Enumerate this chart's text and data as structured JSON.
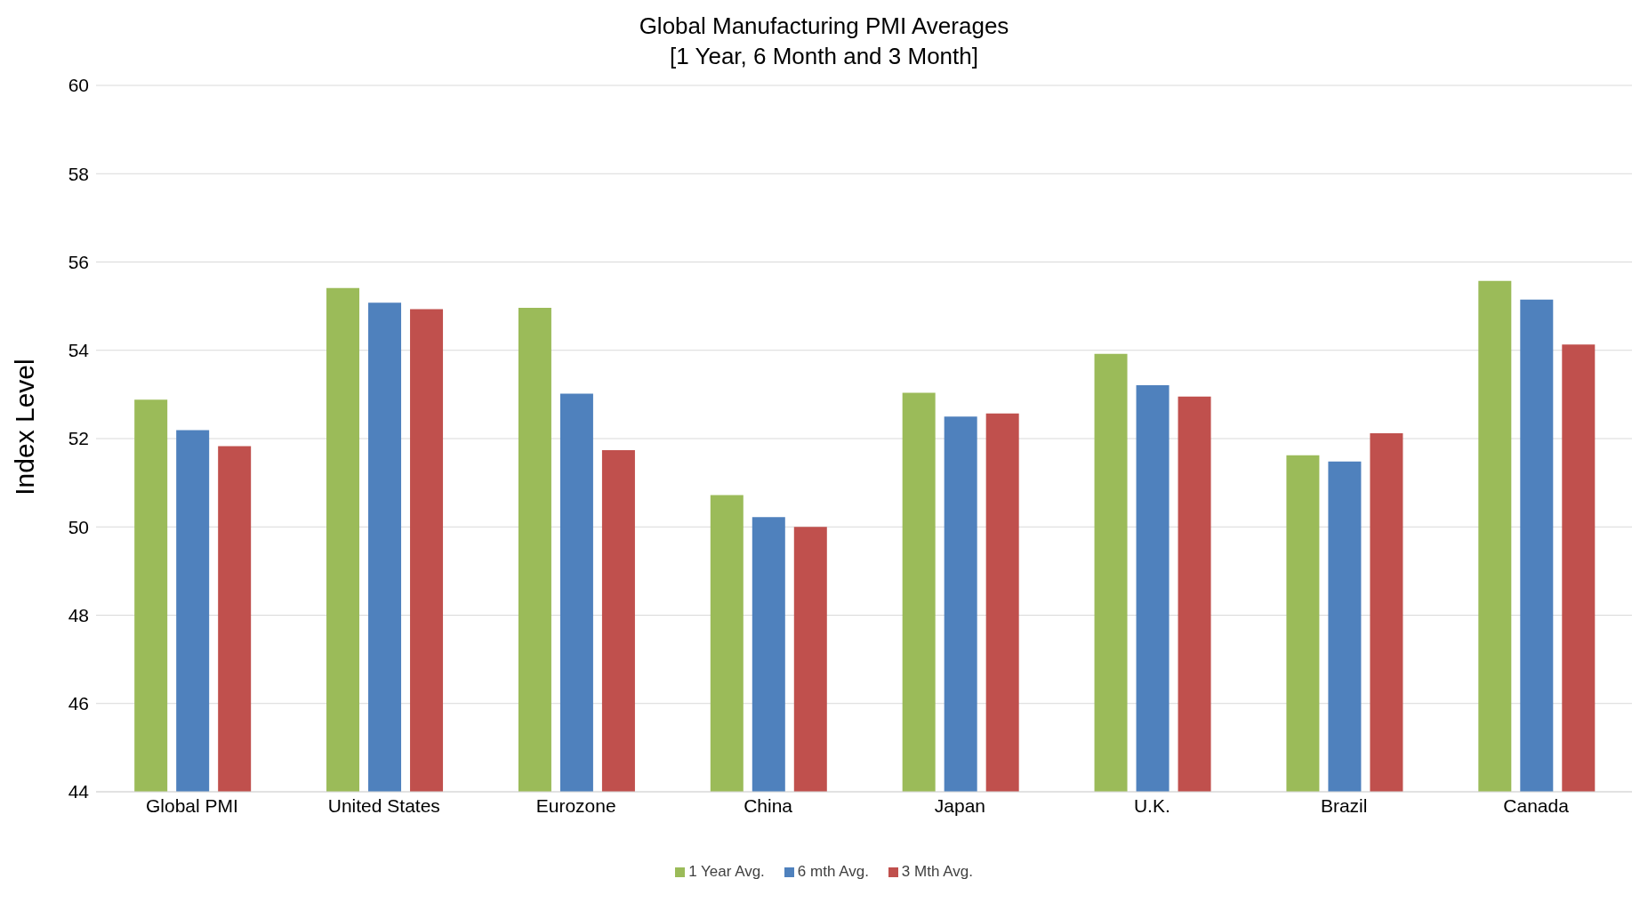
{
  "chart_data": {
    "type": "bar",
    "title": "Global Manufacturing PMI Averages",
    "subtitle": "[1 Year, 6 Month and 3 Month]",
    "ylabel": "Index Level",
    "categories": [
      "Global PMI",
      "United States",
      "Eurozone",
      "China",
      "Japan",
      "U.K.",
      "Brazil",
      "Canada"
    ],
    "series": [
      {
        "name": "1 Year Avg.",
        "color": "#9bbb59",
        "values": [
          52.88,
          55.41,
          54.96,
          50.72,
          53.04,
          53.92,
          51.62,
          55.57
        ]
      },
      {
        "name": "6 mth Avg.",
        "color": "#4f81bd",
        "values": [
          52.19,
          55.08,
          53.02,
          50.22,
          52.5,
          53.21,
          51.48,
          55.15
        ]
      },
      {
        "name": "3 Mth Avg.",
        "color": "#c0504d",
        "values": [
          51.83,
          54.93,
          51.74,
          50.0,
          52.57,
          52.95,
          52.12,
          54.13
        ]
      }
    ],
    "ylim": [
      44,
      60
    ],
    "yticks": [
      44,
      46,
      48,
      50,
      52,
      54,
      56,
      58,
      60
    ],
    "grid": "y",
    "legend": "bottom"
  }
}
